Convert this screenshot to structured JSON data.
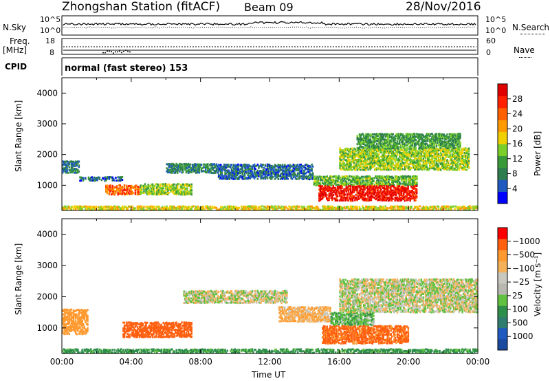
{
  "header": {
    "station": "Zhongshan Station (fitACF)",
    "beam": "Beam 09",
    "date": "28/Nov/2016"
  },
  "top_panels": {
    "nsky_label": "N.Sky",
    "nsky_ticks": [
      "10^5",
      "10^0"
    ],
    "nsearch_label": "N.Search",
    "nsearch_ticks": [
      "10^5",
      "10^0"
    ],
    "freq_label_1": "Freq.",
    "freq_label_2": "[MHz]",
    "freq_ticks": [
      "18",
      "8"
    ],
    "nave_label": "Nave",
    "nave_ticks": [
      "60",
      "0"
    ],
    "cpid_label": "CPID",
    "cpid_text": "normal (fast stereo) 153"
  },
  "colors": {
    "power_scale": [
      "#0000ff",
      "#1e5abf",
      "#2e7d4f",
      "#3a9a3a",
      "#7ccf2a",
      "#f0d000",
      "#ff9a00",
      "#ff6000",
      "#ff2000",
      "#e00000"
    ],
    "velocity_scale": [
      "#ff0000",
      "#ff6010",
      "#ff9a30",
      "#f5b15a",
      "#c8c8c0",
      "#b8b8b0",
      "#60c040",
      "#2e8f4a",
      "#2e7d6f",
      "#1e5abf",
      "#1a4aa0"
    ]
  },
  "chart_data": [
    {
      "type": "heatmap",
      "title": "",
      "xlabel": "",
      "ylabel": "Slant Range [km]",
      "ylim": [
        180,
        4500
      ],
      "xlim": [
        "00:00",
        "24:00"
      ],
      "yticks": [
        "1000",
        "2000",
        "3000",
        "4000"
      ],
      "colorbar_label": "Power [dB]",
      "colorbar_ticks": [
        "4",
        "8",
        "12",
        "16",
        "20",
        "24",
        "28"
      ],
      "colorbar_range": [
        0,
        30
      ],
      "regions": [
        {
          "t0": 0.0,
          "t1": 1.0,
          "r0": 1400,
          "r1": 1800,
          "value": 7
        },
        {
          "t0": 1.0,
          "t1": 3.5,
          "r0": 1150,
          "r1": 1300,
          "value": 6
        },
        {
          "t0": 2.5,
          "t1": 4.5,
          "r0": 700,
          "r1": 1000,
          "value": 22
        },
        {
          "t0": 4.5,
          "t1": 7.5,
          "r0": 700,
          "r1": 1050,
          "value": 14
        },
        {
          "t0": 6.0,
          "t1": 9.0,
          "r0": 1400,
          "r1": 1700,
          "value": 8
        },
        {
          "t0": 9.0,
          "t1": 14.5,
          "r0": 1200,
          "r1": 1700,
          "value": 6
        },
        {
          "t0": 14.5,
          "t1": 20.5,
          "r0": 1000,
          "r1": 1300,
          "value": 12
        },
        {
          "t0": 14.8,
          "t1": 20.5,
          "r0": 500,
          "r1": 1000,
          "value": 27
        },
        {
          "t0": 16.0,
          "t1": 23.5,
          "r0": 1500,
          "r1": 2200,
          "value": 14
        },
        {
          "t0": 17.0,
          "t1": 23.0,
          "r0": 2200,
          "r1": 2700,
          "value": 10
        },
        {
          "t0": 0.0,
          "t1": 24.0,
          "r0": 200,
          "r1": 350,
          "value": 16
        }
      ]
    },
    {
      "type": "heatmap",
      "title": "",
      "xlabel": "Time UT",
      "ylabel": "Slant Range [km]",
      "ylim": [
        180,
        4500
      ],
      "xlim": [
        "00:00",
        "24:00"
      ],
      "xticks": [
        "00:00",
        "04:00",
        "08:00",
        "12:00",
        "16:00",
        "20:00",
        "00:00"
      ],
      "yticks": [
        "1000",
        "2000",
        "3000",
        "4000"
      ],
      "colorbar_label": "Velocity [m s⁻¹]",
      "colorbar_ticks": [
        "1000",
        "500",
        "100",
        "25",
        "−25",
        "−100",
        "−500",
        "−1000"
      ],
      "regions": [
        {
          "t0": 0.0,
          "t1": 1.5,
          "r0": 800,
          "r1": 1600,
          "value": -200
        },
        {
          "t0": 3.5,
          "t1": 7.5,
          "r0": 700,
          "r1": 1200,
          "value": -400
        },
        {
          "t0": 7.0,
          "t1": 13.0,
          "r0": 1800,
          "r1": 2200,
          "value": 0
        },
        {
          "t0": 12.5,
          "t1": 15.5,
          "r0": 1200,
          "r1": 1700,
          "value": -80
        },
        {
          "t0": 15.0,
          "t1": 20.0,
          "r0": 500,
          "r1": 1100,
          "value": -350
        },
        {
          "t0": 15.5,
          "t1": 18.0,
          "r0": 1100,
          "r1": 1500,
          "value": 80
        },
        {
          "t0": 16.0,
          "t1": 24.0,
          "r0": 1500,
          "r1": 2600,
          "value": 0
        },
        {
          "t0": 0.0,
          "t1": 24.0,
          "r0": 200,
          "r1": 350,
          "value": 150
        }
      ]
    }
  ]
}
